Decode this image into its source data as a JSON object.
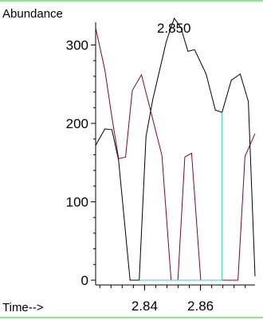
{
  "chart_data": {
    "type": "line",
    "ylabel": "Abundance",
    "xlabel": "Time-->",
    "xlim": [
      2.8225,
      2.8795
    ],
    "ylim": [
      0,
      335
    ],
    "x_ticks": [
      {
        "value": 2.84,
        "label": "2.84"
      },
      {
        "value": 2.86,
        "label": "2.86"
      }
    ],
    "y_ticks": [
      {
        "value": 0,
        "label": "0"
      },
      {
        "value": 100,
        "label": "100"
      },
      {
        "value": 200,
        "label": "200"
      },
      {
        "value": 300,
        "label": "300"
      }
    ],
    "annotations": [
      {
        "text": "2.850",
        "x": 2.8505,
        "y": 322
      }
    ],
    "series": [
      {
        "color": "#000000",
        "points": [
          [
            2.8225,
            172
          ],
          [
            2.8258,
            193
          ],
          [
            2.8283,
            192
          ],
          [
            2.8307,
            153
          ],
          [
            2.8348,
            0
          ],
          [
            2.8381,
            0
          ],
          [
            2.8405,
            183
          ],
          [
            2.8429,
            230
          ],
          [
            2.8478,
            305
          ],
          [
            2.8506,
            334
          ],
          [
            2.853,
            322
          ],
          [
            2.8555,
            292
          ],
          [
            2.8579,
            294
          ],
          [
            2.862,
            263
          ],
          [
            2.8653,
            217
          ],
          [
            2.8677,
            214
          ],
          [
            2.871,
            255
          ],
          [
            2.8742,
            263
          ],
          [
            2.8771,
            228
          ],
          [
            2.8795,
            5
          ]
        ]
      },
      {
        "color": "#880033",
        "points": [
          [
            2.8225,
            322
          ],
          [
            2.8258,
            268
          ],
          [
            2.8283,
            208
          ],
          [
            2.8307,
            155
          ],
          [
            2.8332,
            157
          ],
          [
            2.8356,
            242
          ],
          [
            2.8389,
            262
          ],
          [
            2.8413,
            228
          ],
          [
            2.8462,
            159
          ],
          [
            2.8495,
            0
          ],
          [
            2.8519,
            0
          ],
          [
            2.8544,
            157
          ],
          [
            2.8568,
            162
          ],
          [
            2.8601,
            0
          ],
          [
            2.864,
            0
          ],
          [
            2.8657,
            0
          ],
          [
            2.871,
            0
          ],
          [
            2.8734,
            0
          ],
          [
            2.8759,
            158
          ],
          [
            2.8795,
            187
          ]
        ]
      },
      {
        "color": "#33cccc",
        "points": [
          [
            2.8381,
            0
          ],
          [
            2.8677,
            0
          ],
          [
            2.8677,
            214
          ]
        ]
      }
    ]
  }
}
